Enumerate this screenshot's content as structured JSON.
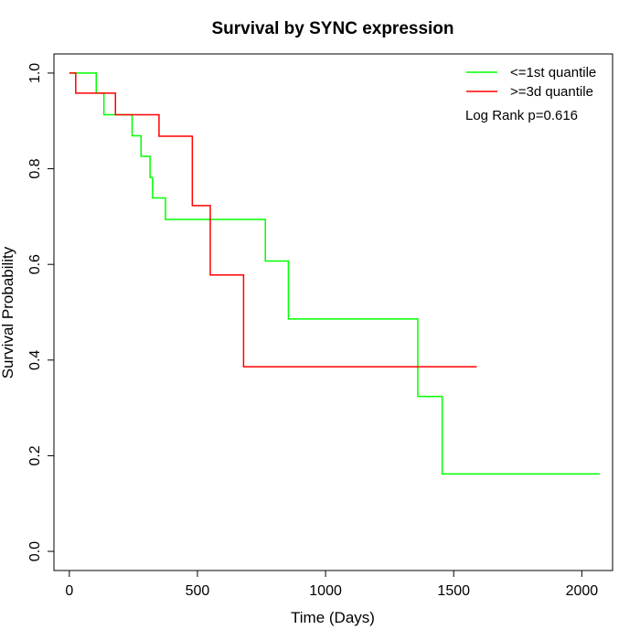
{
  "chart_data": {
    "type": "line",
    "title": "Survival by SYNC expression",
    "xlabel": "Time (Days)",
    "ylabel": "Survival Probability",
    "xlim": [
      -60,
      2120
    ],
    "ylim": [
      -0.04,
      1.04
    ],
    "xticks": [
      0,
      500,
      1000,
      1500,
      2000
    ],
    "xtick_labels": [
      "0",
      "500",
      "1000",
      "1500",
      "2000"
    ],
    "yticks": [
      0.0,
      0.2,
      0.4,
      0.6,
      0.8,
      1.0
    ],
    "ytick_labels": [
      "0.0",
      "0.2",
      "0.4",
      "0.6",
      "0.8",
      "1.0"
    ],
    "grid": false,
    "legend_position": "top-right",
    "annotation": "Log Rank p=0.616",
    "series": [
      {
        "name": "<=1st quantile",
        "color": "#00ff00",
        "step": true,
        "x": [
          0,
          105,
          135,
          245,
          280,
          315,
          325,
          335,
          375,
          765,
          855,
          1360,
          1455,
          2070
        ],
        "y": [
          1.0,
          0.958,
          0.913,
          0.869,
          0.826,
          0.782,
          0.739,
          0.739,
          0.694,
          0.607,
          0.486,
          0.324,
          0.162,
          0.162
        ]
      },
      {
        "name": ">=3d quantile",
        "color": "#ff0000",
        "step": true,
        "x": [
          0,
          25,
          180,
          350,
          480,
          550,
          680,
          1590
        ],
        "y": [
          1.0,
          0.958,
          0.913,
          0.868,
          0.723,
          0.578,
          0.386,
          0.386
        ]
      }
    ]
  }
}
